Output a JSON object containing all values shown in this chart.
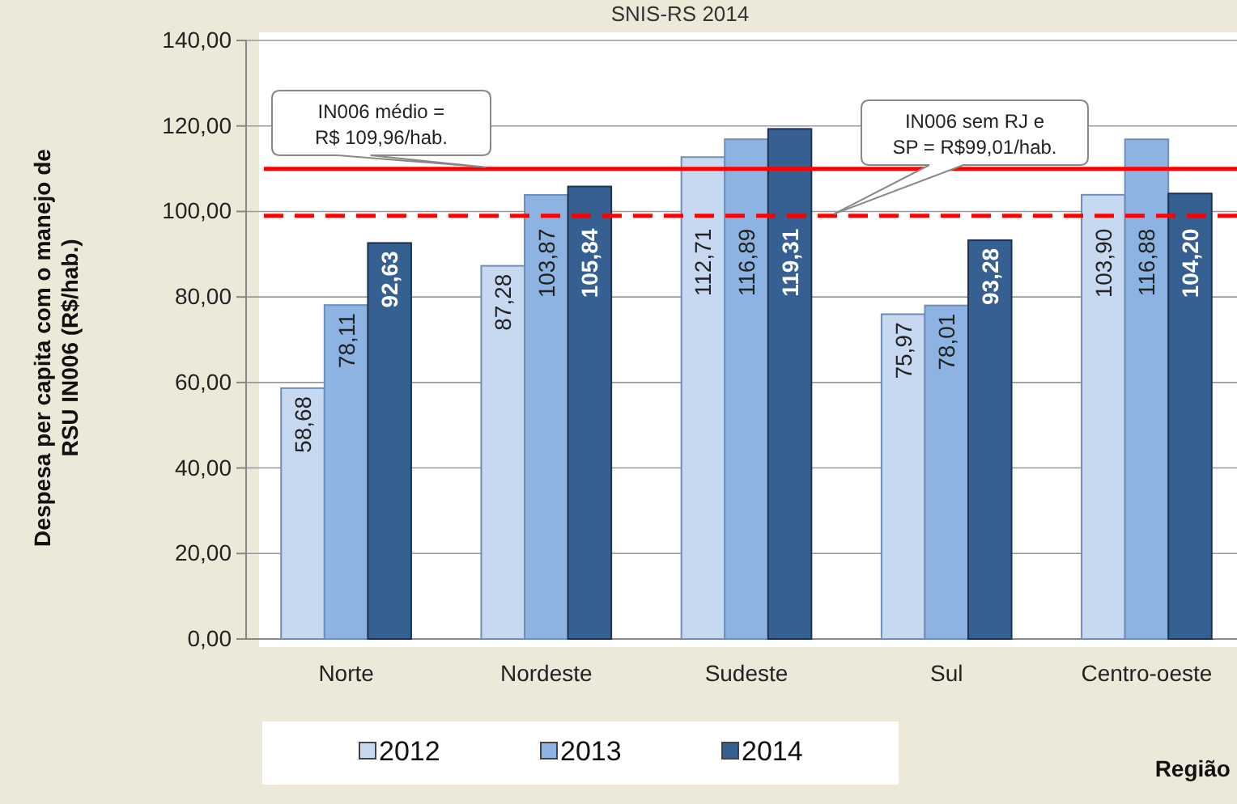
{
  "chart_data": {
    "type": "bar",
    "title": "SNIS-RS 2014",
    "ylabel": "Despesa per capita com o manejo de RSU IN006 (R$/hab.)",
    "xlabel": "Região",
    "categories": [
      "Norte",
      "Nordeste",
      "Sudeste",
      "Sul",
      "Centro-oeste"
    ],
    "series": [
      {
        "name": "2012",
        "color": "#c6d9f1",
        "values": [
          58.68,
          87.28,
          112.71,
          75.97,
          103.9
        ],
        "value_labels": [
          "58,68",
          "87,28",
          "112,71",
          "75,97",
          "103,90"
        ]
      },
      {
        "name": "2013",
        "color": "#8db3e2",
        "values": [
          78.11,
          103.87,
          116.89,
          78.01,
          116.88
        ],
        "value_labels": [
          "78,11",
          "103,87",
          "116,89",
          "78,01",
          "116,88"
        ]
      },
      {
        "name": "2014",
        "color": "#366092",
        "values": [
          92.63,
          105.84,
          119.31,
          93.28,
          104.2
        ],
        "value_labels": [
          "92,63",
          "105,84",
          "119,31",
          "93,28",
          "104,20"
        ]
      }
    ],
    "ylim": [
      0,
      140
    ],
    "yticks": [
      {
        "value": 0,
        "label": "0,00"
      },
      {
        "value": 20,
        "label": "20,00"
      },
      {
        "value": 40,
        "label": "40,00"
      },
      {
        "value": 60,
        "label": "60,00"
      },
      {
        "value": 80,
        "label": "80,00"
      },
      {
        "value": 100,
        "label": "100,00"
      },
      {
        "value": 120,
        "label": "120,00"
      },
      {
        "value": 140,
        "label": "140,00"
      }
    ],
    "grid": "y",
    "legend": "bottom",
    "ref_lines": [
      {
        "axis": "y",
        "value": 109.96,
        "label": "IN006  médio = R$ 109,96/hab.",
        "color": "#ff0000",
        "line_style": "solid"
      },
      {
        "axis": "y",
        "value": 99.01,
        "label": "IN006 sem  RJ e SP = R$99,01/hab.",
        "color": "#ff0000",
        "line_style": "dashed"
      }
    ]
  }
}
